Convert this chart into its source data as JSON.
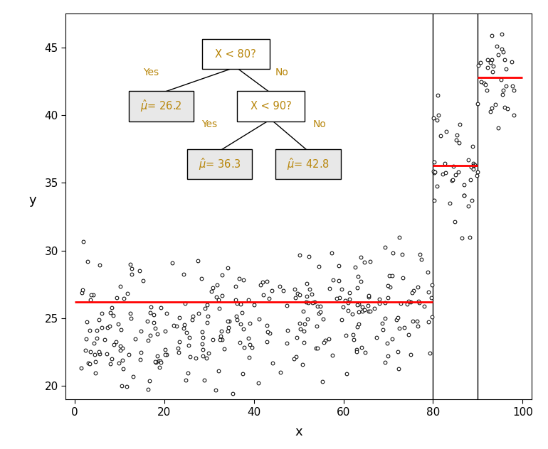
{
  "xlim": [
    -2,
    102
  ],
  "ylim": [
    19,
    47.5
  ],
  "xticks": [
    0,
    20,
    40,
    60,
    80,
    100
  ],
  "yticks": [
    20,
    25,
    30,
    35,
    40,
    45
  ],
  "xlabel": "x",
  "ylabel": "y",
  "vlines": [
    80,
    90
  ],
  "hlines": [
    {
      "xmin": 0,
      "xmax": 80,
      "y": 26.2,
      "color": "red"
    },
    {
      "xmin": 80,
      "xmax": 90,
      "y": 36.3,
      "color": "red"
    },
    {
      "xmin": 90,
      "xmax": 100,
      "y": 42.8,
      "color": "red"
    }
  ],
  "tree_node_color": "#e8e8e8",
  "tree_border_color": "black",
  "tree_text_color": "#b8860b",
  "seed": 42,
  "n_points": 400,
  "scatter_color": "white",
  "scatter_edgecolor": "black",
  "scatter_size": 12,
  "scatter_linewidth": 0.7,
  "fig_bg": "white",
  "ax_bg": "white",
  "figwidth": 7.7,
  "figheight": 6.32,
  "dpi": 100
}
